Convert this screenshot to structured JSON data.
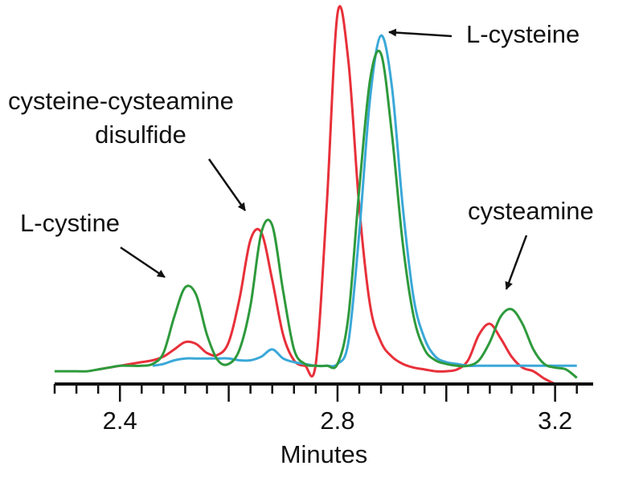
{
  "chart_data": {
    "type": "line",
    "x_label": "Minutes",
    "annotations": [
      [
        "L-cystine"
      ],
      [
        "cysteine-cysteamine",
        "disulfide"
      ],
      [
        "L-cysteine"
      ],
      [
        "cysteamine"
      ]
    ],
    "x": [
      2.28,
      2.3,
      2.32,
      2.34,
      2.36,
      2.38,
      2.4,
      2.42,
      2.44,
      2.46,
      2.48,
      2.5,
      2.52,
      2.54,
      2.56,
      2.58,
      2.6,
      2.62,
      2.64,
      2.66,
      2.68,
      2.7,
      2.72,
      2.74,
      2.76,
      2.78,
      2.8,
      2.82,
      2.84,
      2.86,
      2.88,
      2.9,
      2.92,
      2.94,
      2.96,
      2.98,
      3.0,
      3.02,
      3.04,
      3.06,
      3.08,
      3.1,
      3.12,
      3.14,
      3.16,
      3.18,
      3.2,
      3.22,
      3.24,
      3.26
    ],
    "series": [
      {
        "color": "#e8303a",
        "values": [
          null,
          null,
          null,
          null,
          0.5,
          1,
          1.5,
          2,
          2.5,
          3,
          4,
          6,
          8,
          7.5,
          5,
          4.5,
          8,
          20,
          36,
          38,
          25,
          10,
          3,
          1.5,
          2,
          45,
          98,
          85,
          45,
          18,
          8,
          4,
          2,
          1,
          0.5,
          0,
          0,
          0.5,
          3,
          10,
          13,
          9,
          4,
          1,
          0,
          -2,
          -3.5,
          null,
          null,
          null
        ]
      },
      {
        "color": "#3aa8d8",
        "values": [
          null,
          null,
          null,
          null,
          null,
          null,
          null,
          null,
          null,
          1.5,
          2,
          3,
          3.5,
          3.5,
          3.5,
          3.5,
          3.5,
          3,
          3,
          4,
          6,
          3.5,
          2.5,
          2,
          1.5,
          1.5,
          2,
          8,
          38,
          75,
          92,
          78,
          45,
          20,
          9,
          4,
          2.5,
          2,
          1.5,
          1.5,
          1.5,
          1.5,
          1.5,
          1.5,
          1.5,
          1.5,
          1.5,
          1.5,
          1.5,
          null
        ]
      },
      {
        "color": "#2e9a3c",
        "values": [
          0,
          0,
          0,
          0,
          0.5,
          1,
          1.5,
          1.5,
          1.5,
          2,
          5,
          15,
          23,
          21,
          10,
          3,
          2,
          6,
          18,
          38,
          40,
          22,
          6,
          2,
          1.5,
          1.5,
          2,
          15,
          50,
          80,
          87,
          65,
          35,
          15,
          6,
          3,
          2,
          1.5,
          1.5,
          3,
          8,
          15,
          17,
          13,
          6,
          2,
          1,
          0.5,
          -1.8,
          null
        ]
      }
    ],
    "xlim": [
      2.28,
      3.27
    ],
    "ylim": [
      -3.5,
      100
    ],
    "xticks": [
      2.4,
      2.8,
      3.2
    ],
    "x_unlabeled_major_ticks": [
      2.6,
      3.0
    ],
    "x_minor_ticks": [
      2.28,
      2.32,
      2.36,
      2.44,
      2.48,
      2.52,
      2.56,
      2.64,
      2.68,
      2.72,
      2.76,
      2.84,
      2.88,
      2.92,
      2.96,
      3.04,
      3.08,
      3.12,
      3.16,
      3.24
    ]
  }
}
